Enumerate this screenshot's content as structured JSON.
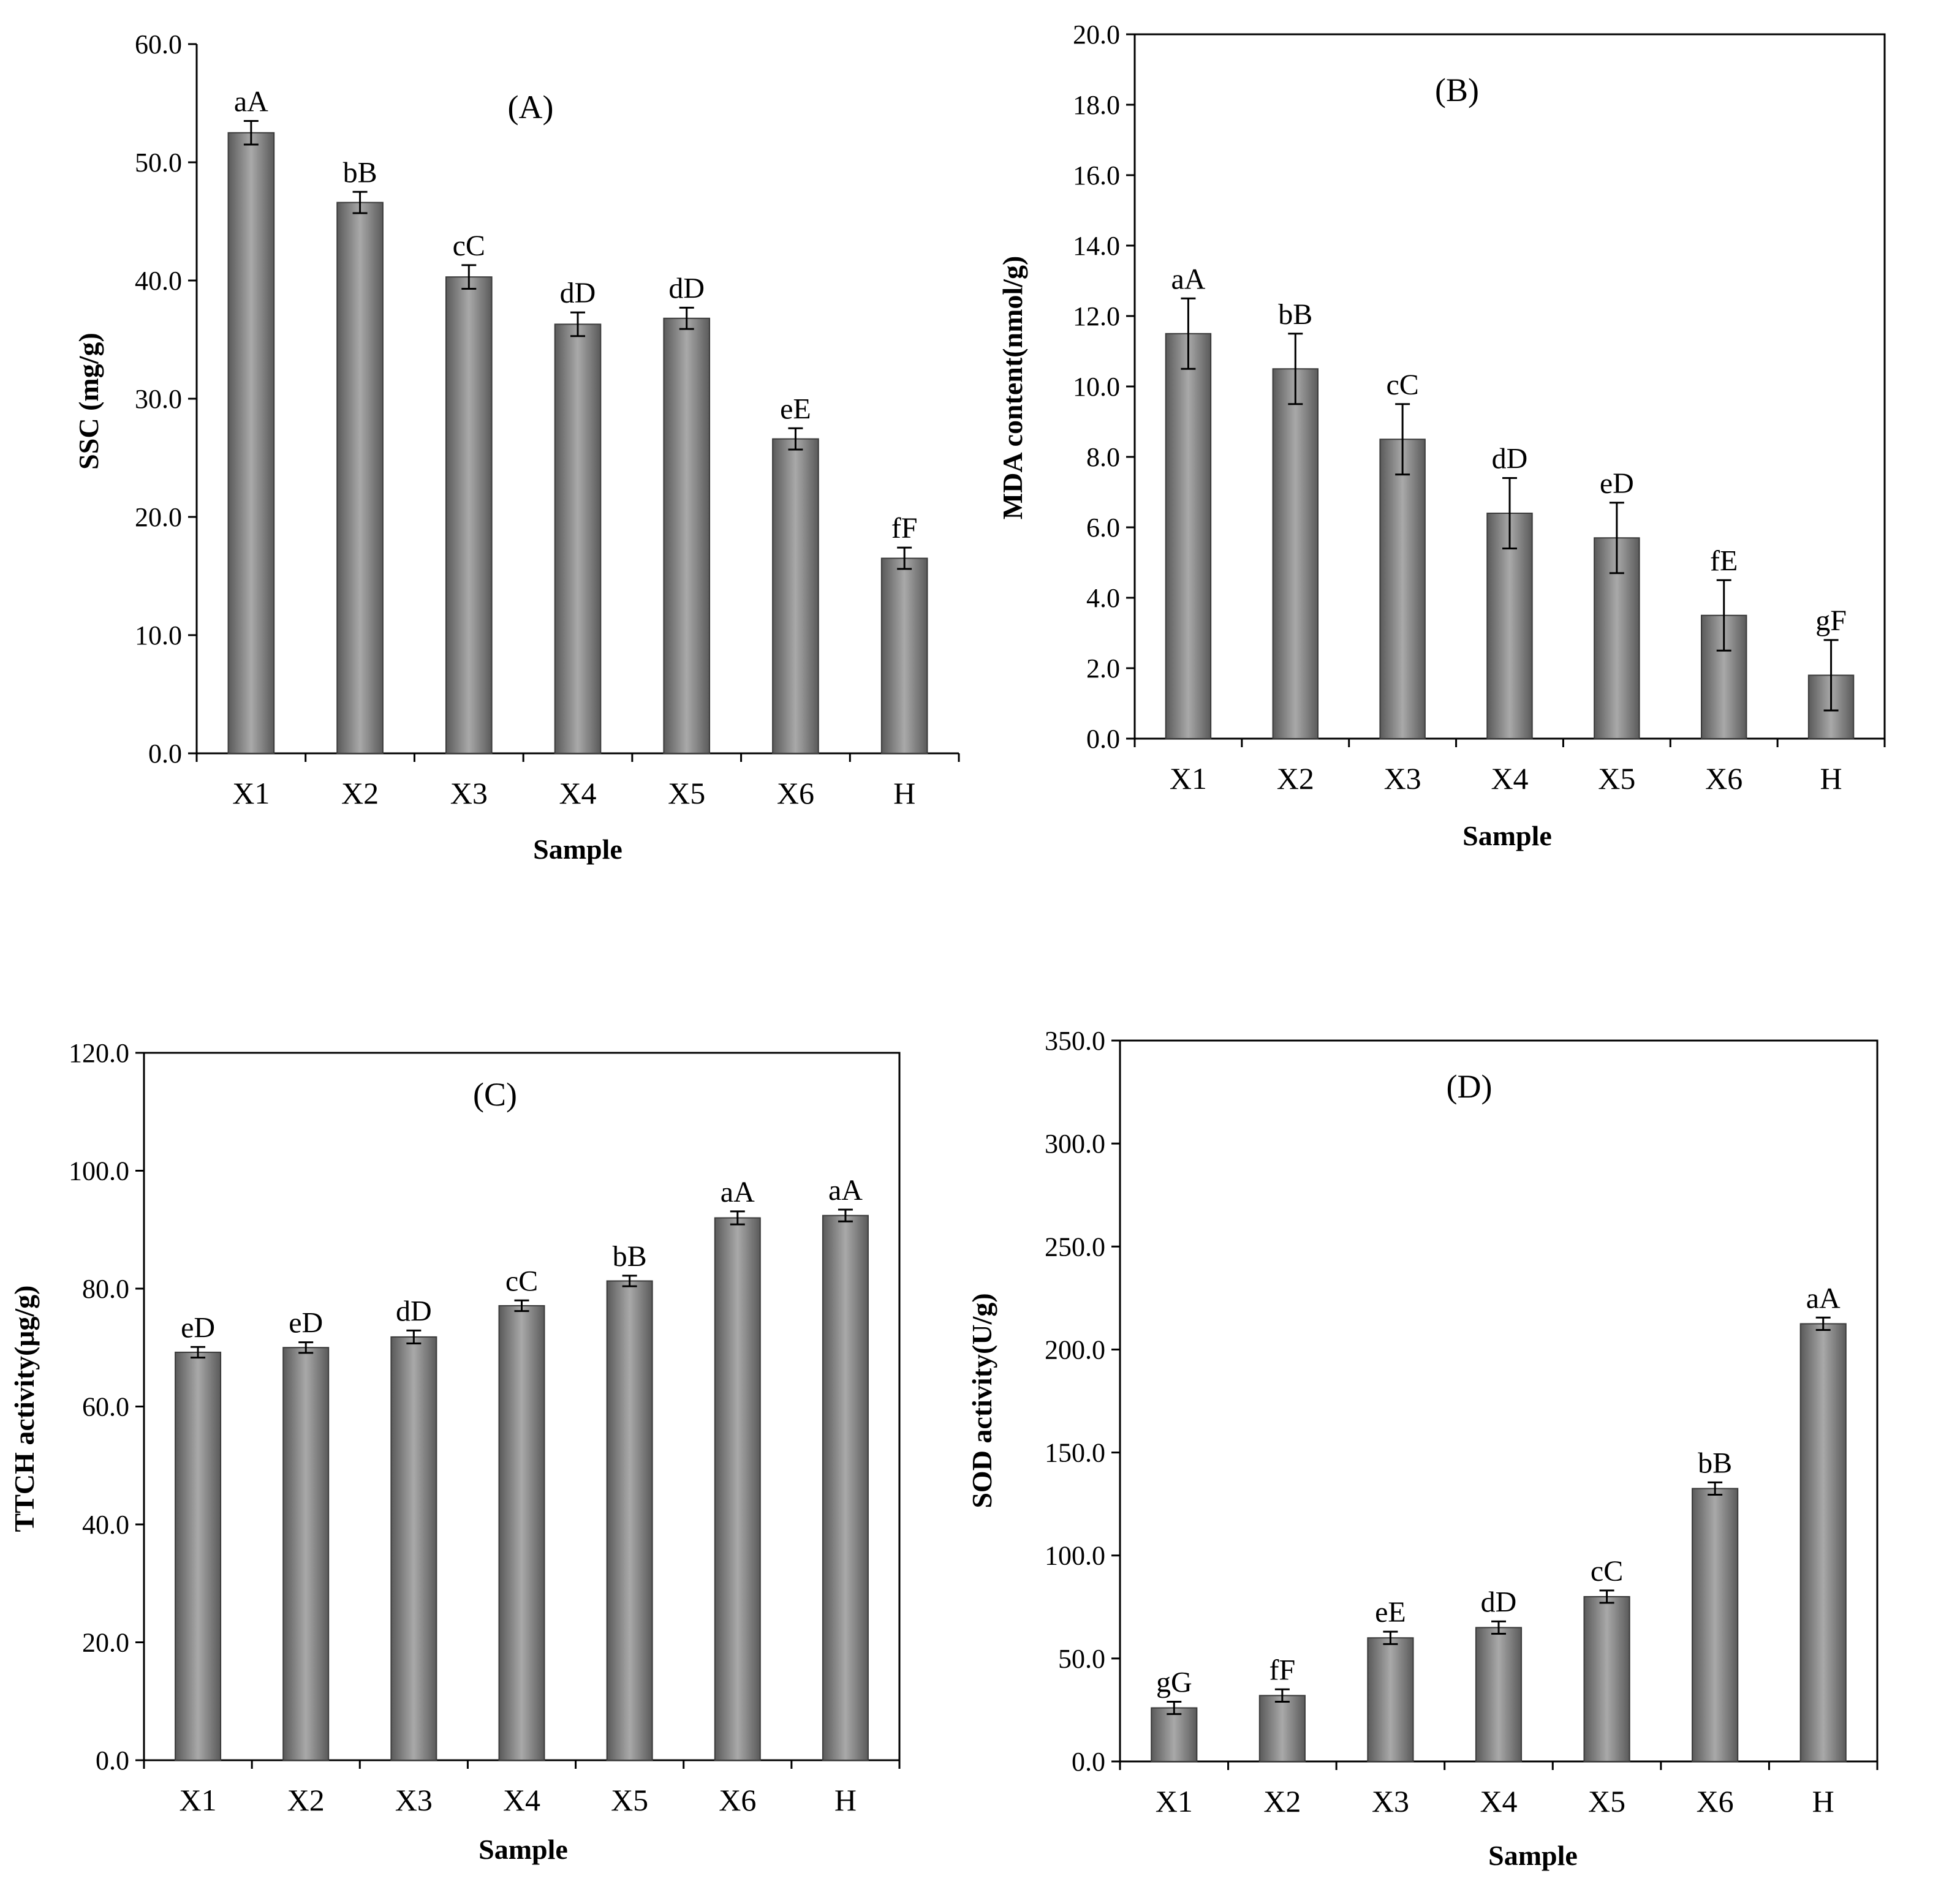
{
  "colors": {
    "bar_edge": "#3a3a3a",
    "bar_dark": "#5a5a5a",
    "bar_light": "#a9a9a9",
    "axis": "#000000"
  },
  "chart_data": [
    {
      "type": "bar",
      "panel_label": "(A)",
      "ylabel": "SSC (mg/g)",
      "xlabel": "Sample",
      "categories": [
        "X1",
        "X2",
        "X3",
        "X4",
        "X5",
        "X6",
        "H"
      ],
      "values": [
        52.5,
        46.6,
        40.3,
        36.3,
        36.8,
        26.6,
        16.5
      ],
      "errors": [
        1.0,
        0.9,
        1.0,
        1.0,
        0.9,
        0.9,
        0.9
      ],
      "significance": [
        "aA",
        "bB",
        "cC",
        "dD",
        "dD",
        "eE",
        "fF"
      ],
      "ylim": [
        0,
        60
      ],
      "yticks": [
        0,
        10,
        20,
        30,
        40,
        50,
        60
      ],
      "ytick_labels": [
        "0.0",
        "10.0",
        "20.0",
        "30.0",
        "40.0",
        "50.0",
        "60.0"
      ],
      "frame": "left-bottom"
    },
    {
      "type": "bar",
      "panel_label": "(B)",
      "ylabel": "MDA content(nmol/g)",
      "xlabel": "Sample",
      "categories": [
        "X1",
        "X2",
        "X3",
        "X4",
        "X5",
        "X6",
        "H"
      ],
      "values": [
        11.5,
        10.5,
        8.5,
        6.4,
        5.7,
        3.5,
        1.8
      ],
      "errors": [
        1.0,
        1.0,
        1.0,
        1.0,
        1.0,
        1.0,
        1.0
      ],
      "significance": [
        "aA",
        "bB",
        "cC",
        "dD",
        "eD",
        "fE",
        "gF"
      ],
      "ylim": [
        0,
        20
      ],
      "yticks": [
        0,
        2,
        4,
        6,
        8,
        10,
        12,
        14,
        16,
        18,
        20
      ],
      "ytick_labels": [
        "0.0",
        "2.0",
        "4.0",
        "6.0",
        "8.0",
        "10.0",
        "12.0",
        "14.0",
        "16.0",
        "18.0",
        "20.0"
      ],
      "frame": "box"
    },
    {
      "type": "bar",
      "panel_label": "(C)",
      "ylabel": "TTCH activity(μg/g)",
      "xlabel": "Sample",
      "categories": [
        "X1",
        "X2",
        "X3",
        "X4",
        "X5",
        "X6",
        "H"
      ],
      "values": [
        69.2,
        70.0,
        71.8,
        77.1,
        81.3,
        92.0,
        92.4
      ],
      "errors": [
        0.9,
        0.9,
        1.1,
        0.9,
        0.9,
        1.1,
        1.0
      ],
      "significance": [
        "eD",
        "eD",
        "dD",
        "cC",
        "bB",
        "aA",
        "aA"
      ],
      "ylim": [
        0,
        120
      ],
      "yticks": [
        0,
        20,
        40,
        60,
        80,
        100,
        120
      ],
      "ytick_labels": [
        "0.0",
        "20.0",
        "40.0",
        "60.0",
        "80.0",
        "100.0",
        "120.0"
      ],
      "frame": "box"
    },
    {
      "type": "bar",
      "panel_label": "(D)",
      "ylabel": "SOD activity(U/g)",
      "xlabel": "Sample",
      "categories": [
        "X1",
        "X2",
        "X3",
        "X4",
        "X5",
        "X6",
        "H"
      ],
      "values": [
        26.0,
        32.0,
        60.0,
        65.0,
        80.0,
        132.5,
        212.5
      ],
      "errors": [
        3.0,
        3.0,
        3.0,
        3.0,
        3.0,
        3.0,
        3.0
      ],
      "significance": [
        "gG",
        "fF",
        "eE",
        "dD",
        "cC",
        "bB",
        "aA"
      ],
      "ylim": [
        0,
        350
      ],
      "yticks": [
        0,
        50,
        100,
        150,
        200,
        250,
        300,
        350
      ],
      "ytick_labels": [
        "0.0",
        "50.0",
        "100.0",
        "150.0",
        "200.0",
        "250.0",
        "300.0",
        "350.0"
      ],
      "frame": "box"
    }
  ]
}
